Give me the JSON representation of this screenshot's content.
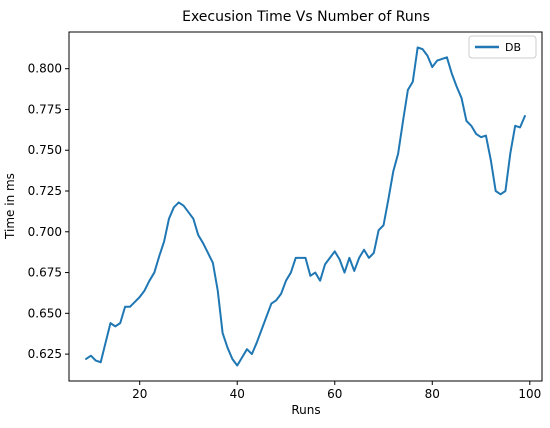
{
  "chart_data": {
    "type": "line",
    "title": "Execusion Time Vs Number of Runs",
    "xlabel": "Runs",
    "ylabel": "Time in ms",
    "xlim": [
      5.5,
      102.5
    ],
    "ylim": [
      0.6085,
      0.8225
    ],
    "x_ticks": [
      20,
      40,
      60,
      80,
      100
    ],
    "y_ticks": [
      0.625,
      0.65,
      0.675,
      0.7,
      0.725,
      0.75,
      0.775,
      0.8
    ],
    "grid": false,
    "legend_position": "top-right",
    "series": [
      {
        "name": "DB",
        "color": "#1f77b4",
        "x": [
          9,
          10,
          11,
          12,
          13,
          14,
          15,
          16,
          17,
          18,
          19,
          20,
          21,
          22,
          23,
          24,
          25,
          26,
          27,
          28,
          29,
          30,
          31,
          32,
          33,
          34,
          35,
          36,
          37,
          38,
          39,
          40,
          41,
          42,
          43,
          44,
          45,
          46,
          47,
          48,
          49,
          50,
          51,
          52,
          53,
          54,
          55,
          56,
          57,
          58,
          59,
          60,
          61,
          62,
          63,
          64,
          65,
          66,
          67,
          68,
          69,
          70,
          71,
          72,
          73,
          74,
          75,
          76,
          77,
          78,
          79,
          80,
          81,
          82,
          83,
          84,
          85,
          86,
          87,
          88,
          89,
          90,
          91,
          92,
          93,
          94,
          95,
          96,
          97,
          98,
          99
        ],
        "y": [
          0.622,
          0.624,
          0.621,
          0.62,
          0.632,
          0.644,
          0.642,
          0.644,
          0.654,
          0.654,
          0.657,
          0.66,
          0.664,
          0.67,
          0.675,
          0.685,
          0.694,
          0.708,
          0.715,
          0.718,
          0.716,
          0.712,
          0.708,
          0.698,
          0.693,
          0.687,
          0.681,
          0.664,
          0.638,
          0.629,
          0.622,
          0.618,
          0.623,
          0.628,
          0.625,
          0.632,
          0.64,
          0.648,
          0.656,
          0.658,
          0.662,
          0.67,
          0.675,
          0.684,
          0.684,
          0.684,
          0.673,
          0.675,
          0.67,
          0.68,
          0.684,
          0.688,
          0.683,
          0.675,
          0.684,
          0.676,
          0.684,
          0.689,
          0.684,
          0.687,
          0.701,
          0.704,
          0.72,
          0.737,
          0.748,
          0.768,
          0.787,
          0.792,
          0.813,
          0.812,
          0.808,
          0.801,
          0.805,
          0.806,
          0.807,
          0.797,
          0.789,
          0.782,
          0.768,
          0.765,
          0.76,
          0.758,
          0.759,
          0.744,
          0.725,
          0.723,
          0.725,
          0.748,
          0.765,
          0.764,
          0.771
        ]
      }
    ]
  }
}
